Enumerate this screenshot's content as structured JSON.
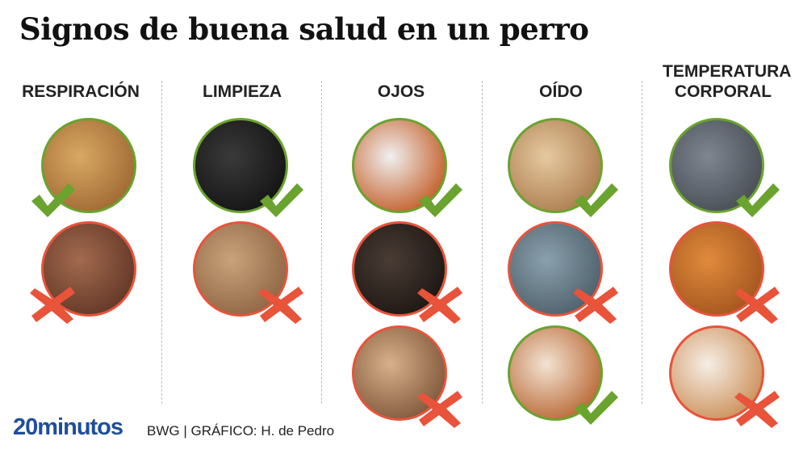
{
  "title": "Signos de buena salud en un perro",
  "colors": {
    "good": "#6aa32e",
    "bad": "#e8533a",
    "brand": "#1f4e9c"
  },
  "columns": [
    {
      "label": "RESPIRACIÓN",
      "cells": [
        {
          "status": "good",
          "icon": "check-icon",
          "photo": [
            "#d9a863",
            "#9b6530"
          ]
        },
        {
          "status": "bad",
          "icon": "cross-icon",
          "photo": [
            "#a36a4e",
            "#5e3424"
          ]
        }
      ]
    },
    {
      "label": "LIMPIEZA",
      "cells": [
        {
          "status": "good",
          "icon": "check-icon",
          "photo": [
            "#3a3a3a",
            "#111111"
          ]
        },
        {
          "status": "bad",
          "icon": "cross-icon",
          "photo": [
            "#c9a27b",
            "#8c6240"
          ]
        }
      ]
    },
    {
      "label": "OJOS",
      "cells": [
        {
          "status": "good",
          "icon": "check-icon",
          "photo": [
            "#f0f0f0",
            "#c0541a"
          ]
        },
        {
          "status": "bad",
          "icon": "cross-icon",
          "photo": [
            "#4a3c35",
            "#1a1410"
          ]
        },
        {
          "status": "bad",
          "icon": "cross-icon",
          "photo": [
            "#d8b08a",
            "#7a5236"
          ]
        }
      ]
    },
    {
      "label": "OÍDO",
      "cells": [
        {
          "status": "good",
          "icon": "check-icon",
          "photo": [
            "#e6c9a0",
            "#a8784a"
          ]
        },
        {
          "status": "bad",
          "icon": "cross-icon",
          "photo": [
            "#8aa0ad",
            "#4a5c66"
          ]
        },
        {
          "status": "good",
          "icon": "check-icon",
          "photo": [
            "#f3e3d3",
            "#b5602a"
          ]
        }
      ]
    },
    {
      "label": "TEMPERATURA CORPORAL",
      "cells": [
        {
          "status": "good",
          "icon": "check-icon",
          "photo": [
            "#7f8690",
            "#454a52"
          ]
        },
        {
          "status": "bad",
          "icon": "cross-icon",
          "photo": [
            "#e08a3c",
            "#a0521c"
          ]
        },
        {
          "status": "bad",
          "icon": "cross-icon",
          "photo": [
            "#f6eee6",
            "#c98a50"
          ]
        }
      ]
    }
  ],
  "footer": {
    "logo": "20minutos",
    "credit": "BWG  |  GRÁFICO: H. de Pedro"
  }
}
